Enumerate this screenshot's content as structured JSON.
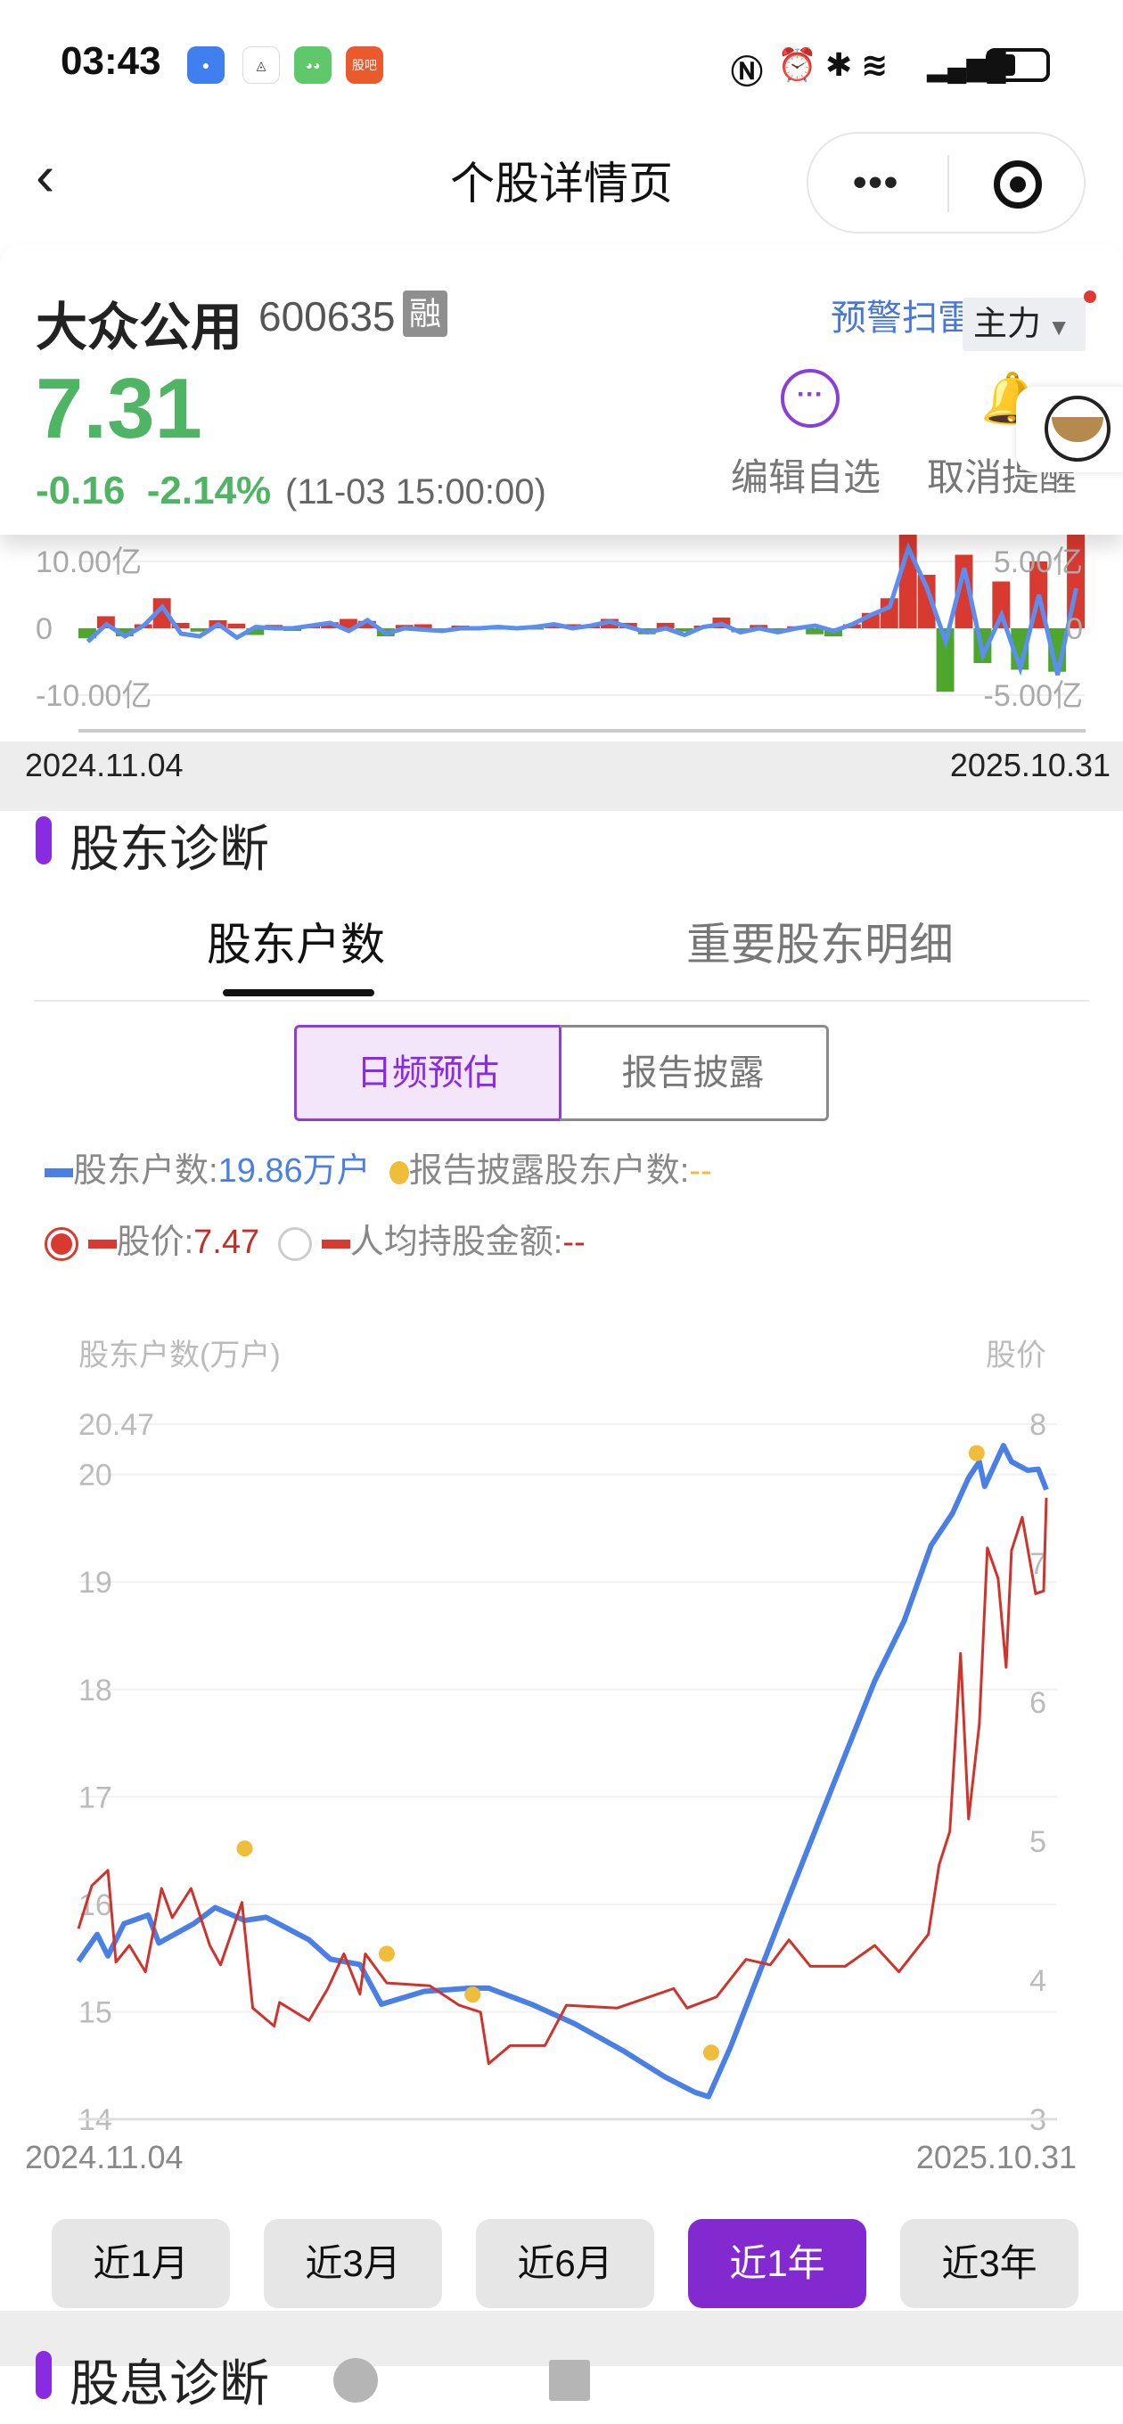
{
  "status_bar": {
    "time": "03:43",
    "apps": [
      "message-icon",
      "compass-app-icon",
      "wechat-icon",
      "guba-icon"
    ],
    "guba_label": "股吧",
    "system_icons": [
      "nfc-icon",
      "alarm-icon",
      "bluetooth-icon",
      "wifi-icon",
      "signal-icon",
      "battery-icon"
    ]
  },
  "nav": {
    "title": "个股详情页",
    "more": "•••"
  },
  "stock": {
    "name": "大众公用",
    "code": "600635",
    "margin_badge": "融",
    "price": "7.31",
    "change": "-0.16",
    "change_pct": "-2.14%",
    "time": "(11-03 15:00:00)",
    "warn_scan": "预警扫雷",
    "main_force": "主力",
    "edit_watch": "编辑自选",
    "cancel_alert": "取消提醒",
    "down_color": "#4fb565"
  },
  "funds_chart": {
    "left_axis": {
      "max_label": "10.00亿",
      "zero_label": "0",
      "min_label": "-10.00亿",
      "range": [
        -10,
        10
      ]
    },
    "right_axis": {
      "max_label": "5.00亿",
      "zero_label": "0",
      "min_label": "-5.00亿",
      "range": [
        -5,
        5
      ]
    },
    "start_date": "2024.11.04",
    "end_date": "2025.10.31",
    "bars": [
      -1.5,
      1.8,
      -1.2,
      0.6,
      4.5,
      0.8,
      -0.5,
      1.2,
      0.7,
      -1,
      0.5,
      -0.4,
      0.3,
      0.9,
      1.4,
      1.1,
      -1.2,
      0.5,
      0.6,
      -0.3,
      0.4,
      0.2,
      -0.2,
      0.3,
      -0.2,
      0.4,
      0.6,
      0.5,
      1.4,
      0.8,
      -0.9,
      0.8,
      -0.5,
      0.4,
      1.6,
      -0.6,
      0.5,
      -0.4,
      0.3,
      -0.9,
      -1.2,
      0.6,
      2.3,
      4.5,
      14,
      8,
      -9.5,
      11,
      -5.2,
      7,
      -6.2,
      10,
      -6.5,
      14
    ],
    "line": [
      -1,
      0.3,
      -0.6,
      0.2,
      1.6,
      -0.4,
      -0.6,
      0.3,
      -0.7,
      0.1,
      0,
      0,
      0.2,
      0.4,
      -0.2,
      0.6,
      -0.4,
      0,
      -0.1,
      -0.2,
      0,
      0,
      0.1,
      0,
      0.1,
      0.3,
      0,
      0.2,
      0.5,
      0.1,
      -0.3,
      0,
      -0.5,
      0.1,
      0.3,
      -0.3,
      0,
      -0.3,
      0,
      0.2,
      -0.2,
      0.3,
      1,
      1.6,
      6,
      3,
      -1,
      4.5,
      -2,
      1,
      -3,
      2.5,
      -3.5,
      3
    ],
    "colors": {
      "up": "#d93a2f",
      "down": "#4ea62d",
      "line": "#5b8ef0"
    }
  },
  "holder_section": {
    "title": "股东诊断",
    "tabs": [
      {
        "label": "股东户数",
        "active": true
      },
      {
        "label": "重要股东明细",
        "active": false
      }
    ],
    "segments": [
      {
        "label": "日频预估",
        "active": true
      },
      {
        "label": "报告披露",
        "active": false
      }
    ],
    "legend": {
      "holders_label": "股东户数:",
      "holders_value": "19.86万户",
      "reported_label": "报告披露股东户数:",
      "reported_value": "--",
      "price_label": "股价:",
      "price_value": "7.47",
      "price_selected": true,
      "avg_label": "人均持股金额:",
      "avg_value": "--",
      "avg_selected": false
    },
    "ranges": [
      {
        "label": "近1月",
        "active": false
      },
      {
        "label": "近3月",
        "active": false
      },
      {
        "label": "近6月",
        "active": false
      },
      {
        "label": "近1年",
        "active": true
      },
      {
        "label": "近3年",
        "active": false
      }
    ]
  },
  "chart_data": {
    "type": "line",
    "left_axis_title": "股东户数(万户)",
    "right_axis_title": "股价",
    "left_ticks": [
      "20.47",
      "20",
      "19",
      "18",
      "17",
      "16",
      "15",
      "14"
    ],
    "left_range": [
      14,
      20.47
    ],
    "right_ticks": [
      "8",
      "7",
      "6",
      "5",
      "4",
      "3"
    ],
    "right_range": [
      3,
      8
    ],
    "x_start": "2024.11.04",
    "x_end": "2025.10.31",
    "grid": true,
    "series": [
      {
        "name": "股东户数",
        "axis": "left",
        "color": "#4a7fe6",
        "points": [
          [
            "2024-11-04",
            15.47
          ],
          [
            "2024-11-11",
            15.72
          ],
          [
            "2024-11-15",
            15.52
          ],
          [
            "2024-11-21",
            15.82
          ],
          [
            "2024-11-30",
            15.9
          ],
          [
            "2024-12-04",
            15.64
          ],
          [
            "2024-12-17",
            15.82
          ],
          [
            "2024-12-25",
            15.97
          ],
          [
            "2025-01-05",
            15.85
          ],
          [
            "2025-01-13",
            15.88
          ],
          [
            "2025-01-29",
            15.67
          ],
          [
            "2025-02-06",
            15.49
          ],
          [
            "2025-02-17",
            15.44
          ],
          [
            "2025-02-25",
            15.07
          ],
          [
            "2025-03-13",
            15.19
          ],
          [
            "2025-03-30",
            15.22
          ],
          [
            "2025-04-06",
            15.22
          ],
          [
            "2025-04-22",
            15.07
          ],
          [
            "2025-05-08",
            14.89
          ],
          [
            "2025-05-26",
            14.64
          ],
          [
            "2025-06-11",
            14.39
          ],
          [
            "2025-06-22",
            14.25
          ],
          [
            "2025-06-27",
            14.21
          ],
          [
            "2025-07-05",
            14.66
          ],
          [
            "2025-07-27",
            16.07
          ],
          [
            "2025-08-12",
            17.08
          ],
          [
            "2025-08-28",
            18.08
          ],
          [
            "2025-09-08",
            18.64
          ],
          [
            "2025-09-18",
            19.34
          ],
          [
            "2025-09-26",
            19.64
          ],
          [
            "2025-10-02",
            19.97
          ],
          [
            "2025-10-06",
            20.12
          ],
          [
            "2025-10-08",
            19.89
          ],
          [
            "2025-10-15",
            20.27
          ],
          [
            "2025-10-18",
            20.12
          ],
          [
            "2025-10-24",
            20.04
          ],
          [
            "2025-10-28",
            20.05
          ],
          [
            "2025-10-31",
            19.86
          ]
        ]
      },
      {
        "name": "股价",
        "axis": "right",
        "color": "#d0332b",
        "points": [
          [
            "2024-11-04",
            4.37
          ],
          [
            "2024-11-09",
            4.68
          ],
          [
            "2024-11-15",
            4.79
          ],
          [
            "2024-11-18",
            4.13
          ],
          [
            "2024-11-23",
            4.25
          ],
          [
            "2024-11-29",
            4.06
          ],
          [
            "2024-12-05",
            4.66
          ],
          [
            "2024-12-09",
            4.45
          ],
          [
            "2024-12-16",
            4.66
          ],
          [
            "2024-12-23",
            4.25
          ],
          [
            "2024-12-27",
            4.11
          ],
          [
            "2025-01-04",
            4.56
          ],
          [
            "2025-01-08",
            3.8
          ],
          [
            "2025-01-16",
            3.67
          ],
          [
            "2025-01-18",
            3.84
          ],
          [
            "2025-01-29",
            3.71
          ],
          [
            "2025-02-05",
            3.94
          ],
          [
            "2025-02-11",
            4.19
          ],
          [
            "2025-02-17",
            3.9
          ],
          [
            "2025-02-19",
            4.19
          ],
          [
            "2025-02-27",
            3.98
          ],
          [
            "2025-03-15",
            3.96
          ],
          [
            "2025-03-26",
            3.82
          ],
          [
            "2025-04-03",
            3.77
          ],
          [
            "2025-04-06",
            3.4
          ],
          [
            "2025-04-14",
            3.53
          ],
          [
            "2025-04-27",
            3.53
          ],
          [
            "2025-05-05",
            3.82
          ],
          [
            "2025-05-24",
            3.8
          ],
          [
            "2025-06-14",
            3.94
          ],
          [
            "2025-06-19",
            3.8
          ],
          [
            "2025-06-30",
            3.88
          ],
          [
            "2025-07-11",
            4.15
          ],
          [
            "2025-07-20",
            4.11
          ],
          [
            "2025-07-27",
            4.29
          ],
          [
            "2025-08-04",
            4.1
          ],
          [
            "2025-08-17",
            4.1
          ],
          [
            "2025-08-28",
            4.25
          ],
          [
            "2025-09-06",
            4.06
          ],
          [
            "2025-09-17",
            4.33
          ],
          [
            "2025-09-21",
            4.83
          ],
          [
            "2025-09-25",
            5.07
          ],
          [
            "2025-09-29",
            6.35
          ],
          [
            "2025-10-02",
            5.16
          ],
          [
            "2025-10-06",
            5.84
          ],
          [
            "2025-10-09",
            7.11
          ],
          [
            "2025-10-13",
            6.89
          ],
          [
            "2025-10-16",
            6.25
          ],
          [
            "2025-10-18",
            7.09
          ],
          [
            "2025-10-22",
            7.33
          ],
          [
            "2025-10-27",
            6.78
          ],
          [
            "2025-10-30",
            6.8
          ],
          [
            "2025-10-31",
            7.47
          ]
        ]
      },
      {
        "name": "报告披露股东户数",
        "axis": "left",
        "color": "#f0bd3a",
        "type": "scatter",
        "points": [
          [
            "2025-01-05",
            16.52
          ],
          [
            "2025-02-27",
            15.54
          ],
          [
            "2025-03-31",
            15.16
          ],
          [
            "2025-06-28",
            14.62
          ],
          [
            "2025-10-05",
            20.2
          ]
        ]
      }
    ]
  },
  "dividend_section": {
    "title": "股息诊断"
  }
}
